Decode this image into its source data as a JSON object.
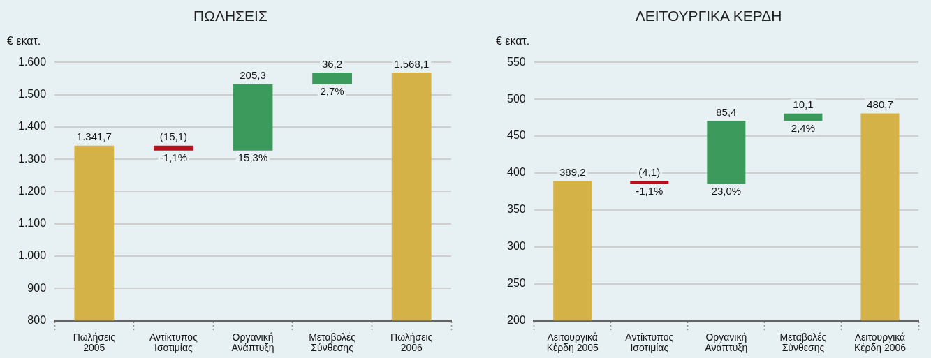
{
  "chart_data": [
    {
      "type": "bar",
      "title": "ΠΩΛΗΣΕΙΣ",
      "ylabel": "€ εκατ.",
      "categories": [
        "Πωλήσεις 2005",
        "Αντίκτυπος Ισοτιμίας",
        "Οργανική Ανάπτυξη",
        "Μεταβολές Σύνθεσης",
        "Πωλήσεις 2006"
      ],
      "values": [
        1341.7,
        -15.1,
        205.3,
        36.2,
        1568.1
      ],
      "base": [
        null,
        1341.7,
        1326.6,
        1531.9,
        null
      ],
      "colors": [
        "#d4b248",
        "#b3121f",
        "#3c9a5d",
        "#3c9a5d",
        "#d4b248"
      ],
      "value_labels": [
        "1.341,7",
        "(15,1)",
        "205,3",
        "36,2",
        "1.568,1"
      ],
      "annotations": [
        {
          "text": "-1,1%",
          "x": "Αντίκτυπος Ισοτιμίας",
          "y": 1326.6
        },
        {
          "text": "15,3%",
          "x": "Οργανική Ανάπτυξη",
          "y": 1326.6
        },
        {
          "text": "2,7%",
          "x": "Μεταβολές Σύνθεσης",
          "y": 1531.9
        }
      ],
      "ylim": [
        800,
        1600
      ],
      "yticks": [
        800,
        900,
        {
          "value": 1000,
          "label": "1.000"
        },
        {
          "value": 1100,
          "label": "1.100"
        },
        {
          "value": 1200,
          "label": "1.200"
        },
        {
          "value": 1300,
          "label": "1.300"
        },
        {
          "value": 1400,
          "label": "1.400"
        },
        {
          "value": 1500,
          "label": "1.500"
        },
        {
          "value": 1600,
          "label": "1.600"
        }
      ],
      "grid": "y"
    },
    {
      "type": "bar",
      "title": "ΛΕΙΤΟΥΡΓΙΚΑ ΚΕΡΔΗ",
      "ylabel": "€ εκατ.",
      "categories": [
        "Λειτουργικά Κέρδη 2005",
        "Αντίκτυπος Ισοτιμίας",
        "Οργανική Ανάπτυξη",
        "Μεταβολές Σύνθεσης",
        "Λειτουργικά Κέρδη 2006"
      ],
      "values": [
        389.2,
        -4.1,
        85.4,
        10.1,
        480.7
      ],
      "base": [
        null,
        389.2,
        385.1,
        470.5,
        null
      ],
      "colors": [
        "#d4b248",
        "#b3121f",
        "#3c9a5d",
        "#3c9a5d",
        "#d4b248"
      ],
      "value_labels": [
        "389,2",
        "(4,1)",
        "85,4",
        "10,1",
        "480,7"
      ],
      "annotations": [
        {
          "text": "-1,1%",
          "x": "Αντίκτυπος Ισοτιμίας",
          "y": 385.1
        },
        {
          "text": "23,0%",
          "x": "Οργανική Ανάπτυξη",
          "y": 385.1
        },
        {
          "text": "2,4%",
          "x": "Μεταβολές Σύνθεσης",
          "y": 470.5
        }
      ],
      "ylim": [
        200,
        550
      ],
      "yticks": [
        200,
        250,
        300,
        350,
        400,
        450,
        500,
        550
      ],
      "grid": "y"
    }
  ]
}
